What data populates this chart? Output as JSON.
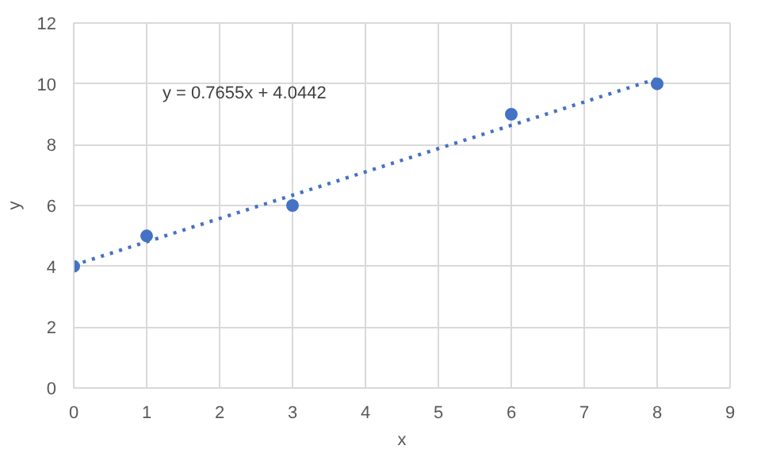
{
  "chart_data": {
    "type": "scatter",
    "xlabel": "x",
    "ylabel": "y",
    "xlim": [
      0,
      9
    ],
    "xticks": [
      0,
      1,
      2,
      3,
      4,
      5,
      6,
      7,
      8,
      9
    ],
    "ylim": [
      0,
      12
    ],
    "yticks": [
      0,
      2,
      4,
      6,
      8,
      10,
      12
    ],
    "grid": true,
    "marker": "circle",
    "series": [
      {
        "color": "#4472c4",
        "x": [
          0,
          1,
          3,
          6,
          8
        ],
        "values": [
          4,
          5,
          6,
          9,
          10
        ]
      },
      {
        "type": "line",
        "color": "#4472c4",
        "line_style": "dotted",
        "marker": "none",
        "x": [
          0,
          8
        ],
        "values": [
          4.04,
          10.17
        ]
      }
    ],
    "annotations": [
      "y = 0.7655x + 4.0442"
    ]
  }
}
